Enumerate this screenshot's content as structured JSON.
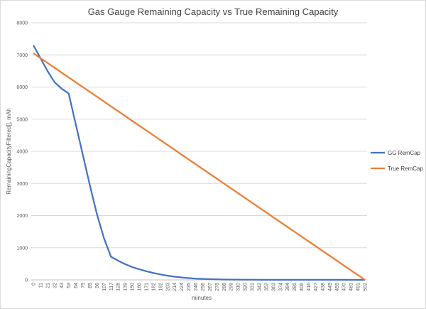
{
  "chart_data": {
    "type": "line",
    "title": "Gas Gauge Remaining Capacity vs True Remaining Capacity",
    "xlabel": "minutes",
    "ylabel": "RemainingCapacityFiltered[], mAh",
    "ylim": [
      0,
      8000
    ],
    "yticks": [
      0,
      1000,
      2000,
      3000,
      4000,
      5000,
      6000,
      7000,
      8000
    ],
    "grid": true,
    "legend_position": "right",
    "categories": [
      "0",
      "11",
      "21",
      "32",
      "43",
      "53",
      "64",
      "75",
      "85",
      "96",
      "107",
      "117",
      "128",
      "139",
      "150",
      "160",
      "171",
      "182",
      "192",
      "203",
      "214",
      "224",
      "235",
      "246",
      "256",
      "267",
      "278",
      "288",
      "299",
      "310",
      "320",
      "331",
      "342",
      "352",
      "363",
      "374",
      "384",
      "395",
      "406",
      "416",
      "427",
      "438",
      "449",
      "459",
      "470",
      "481",
      "491",
      "502"
    ],
    "series": [
      {
        "name": "GG RemCap",
        "color": "#4472C4",
        "values": [
          7300,
          6900,
          6500,
          6150,
          5950,
          5800,
          4850,
          3900,
          2950,
          2050,
          1300,
          720,
          600,
          490,
          400,
          330,
          270,
          215,
          170,
          130,
          100,
          75,
          55,
          40,
          30,
          22,
          16,
          12,
          9,
          7,
          6,
          5,
          4,
          4,
          3,
          3,
          3,
          2,
          2,
          2,
          2,
          2,
          2,
          2,
          2,
          1,
          1,
          0
        ]
      },
      {
        "name": "True RemCap",
        "color": "#ED7D31",
        "values": [
          7050,
          6900,
          6750,
          6600,
          6450,
          6300,
          6150,
          6000,
          5850,
          5700,
          5550,
          5400,
          5250,
          5100,
          4950,
          4800,
          4650,
          4500,
          4350,
          4200,
          4050,
          3900,
          3750,
          3600,
          3450,
          3300,
          3150,
          3000,
          2850,
          2700,
          2550,
          2400,
          2250,
          2100,
          1950,
          1800,
          1650,
          1500,
          1350,
          1200,
          1050,
          900,
          750,
          600,
          450,
          300,
          150,
          0
        ]
      }
    ]
  }
}
